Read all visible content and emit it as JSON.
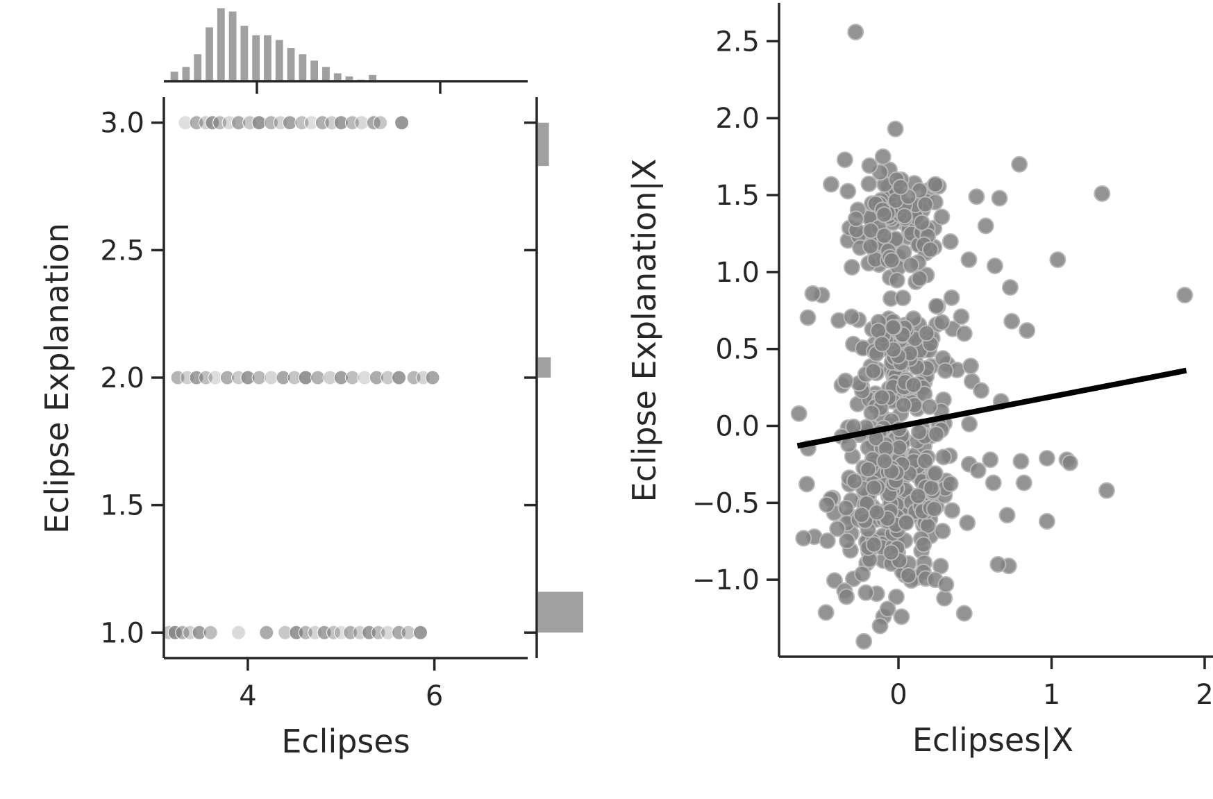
{
  "chart_data": [
    {
      "type": "scatter",
      "subtype": "joint-plot",
      "title": "",
      "xlabel": "Eclipses",
      "ylabel": "Eclipse Explanation",
      "xlim": [
        3.1,
        7.0
      ],
      "ylim": [
        0.9,
        3.1
      ],
      "xticks": [
        4,
        6
      ],
      "xtick_labels": [
        "4",
        "6"
      ],
      "yticks": [
        1.0,
        1.5,
        2.0,
        2.5,
        3.0
      ],
      "ytick_labels": [
        "1.0",
        "1.5",
        "2.0",
        "2.5",
        "3.0"
      ],
      "point_color": "#808080",
      "grid": false,
      "points": [
        {
          "x": 3.33,
          "y": 3.0
        },
        {
          "x": 3.45,
          "y": 3.0
        },
        {
          "x": 3.55,
          "y": 3.0
        },
        {
          "x": 3.62,
          "y": 3.0
        },
        {
          "x": 3.7,
          "y": 3.0
        },
        {
          "x": 3.8,
          "y": 3.0
        },
        {
          "x": 3.9,
          "y": 3.0
        },
        {
          "x": 4.02,
          "y": 3.0
        },
        {
          "x": 4.12,
          "y": 3.0
        },
        {
          "x": 4.25,
          "y": 3.0
        },
        {
          "x": 4.35,
          "y": 3.0
        },
        {
          "x": 4.45,
          "y": 3.0
        },
        {
          "x": 4.58,
          "y": 3.0
        },
        {
          "x": 4.68,
          "y": 3.0
        },
        {
          "x": 4.8,
          "y": 3.0
        },
        {
          "x": 4.9,
          "y": 3.0
        },
        {
          "x": 5.0,
          "y": 3.0
        },
        {
          "x": 5.12,
          "y": 3.0
        },
        {
          "x": 5.22,
          "y": 3.0
        },
        {
          "x": 5.35,
          "y": 3.0
        },
        {
          "x": 5.42,
          "y": 3.0
        },
        {
          "x": 5.65,
          "y": 3.0
        },
        {
          "x": 3.25,
          "y": 2.0
        },
        {
          "x": 3.35,
          "y": 2.0
        },
        {
          "x": 3.45,
          "y": 2.0
        },
        {
          "x": 3.55,
          "y": 2.0
        },
        {
          "x": 3.65,
          "y": 2.0
        },
        {
          "x": 3.78,
          "y": 2.0
        },
        {
          "x": 3.9,
          "y": 2.0
        },
        {
          "x": 4.0,
          "y": 2.0
        },
        {
          "x": 4.12,
          "y": 2.0
        },
        {
          "x": 4.25,
          "y": 2.0
        },
        {
          "x": 4.38,
          "y": 2.0
        },
        {
          "x": 4.5,
          "y": 2.0
        },
        {
          "x": 4.62,
          "y": 2.0
        },
        {
          "x": 4.75,
          "y": 2.0
        },
        {
          "x": 4.88,
          "y": 2.0
        },
        {
          "x": 5.0,
          "y": 2.0
        },
        {
          "x": 5.12,
          "y": 2.0
        },
        {
          "x": 5.25,
          "y": 2.0
        },
        {
          "x": 5.38,
          "y": 2.0
        },
        {
          "x": 5.5,
          "y": 2.0
        },
        {
          "x": 5.62,
          "y": 2.0
        },
        {
          "x": 5.78,
          "y": 2.0
        },
        {
          "x": 5.88,
          "y": 2.0
        },
        {
          "x": 5.98,
          "y": 2.0
        },
        {
          "x": 3.15,
          "y": 1.0
        },
        {
          "x": 3.22,
          "y": 1.0
        },
        {
          "x": 3.3,
          "y": 1.0
        },
        {
          "x": 3.38,
          "y": 1.0
        },
        {
          "x": 3.48,
          "y": 1.0
        },
        {
          "x": 3.6,
          "y": 1.0
        },
        {
          "x": 3.9,
          "y": 1.0
        },
        {
          "x": 4.2,
          "y": 1.0
        },
        {
          "x": 4.4,
          "y": 1.0
        },
        {
          "x": 4.52,
          "y": 1.0
        },
        {
          "x": 4.62,
          "y": 1.0
        },
        {
          "x": 4.72,
          "y": 1.0
        },
        {
          "x": 4.82,
          "y": 1.0
        },
        {
          "x": 4.92,
          "y": 1.0
        },
        {
          "x": 5.0,
          "y": 1.0
        },
        {
          "x": 5.1,
          "y": 1.0
        },
        {
          "x": 5.2,
          "y": 1.0
        },
        {
          "x": 5.3,
          "y": 1.0
        },
        {
          "x": 5.4,
          "y": 1.0
        },
        {
          "x": 5.5,
          "y": 1.0
        },
        {
          "x": 5.62,
          "y": 1.0
        },
        {
          "x": 5.72,
          "y": 1.0
        },
        {
          "x": 5.85,
          "y": 1.0
        }
      ],
      "marginal_x": {
        "type": "histogram",
        "bin_start": 3.15,
        "bin_width": 0.125,
        "counts": [
          12,
          18,
          34,
          68,
          92,
          88,
          70,
          58,
          58,
          52,
          42,
          34,
          26,
          18,
          10,
          6,
          2,
          8
        ]
      },
      "marginal_y": {
        "type": "histogram",
        "bars": [
          {
            "y_from": 1.0,
            "y_to": 1.16,
            "count": 100
          },
          {
            "y_from": 2.0,
            "y_to": 2.08,
            "count": 28
          },
          {
            "y_from": 2.83,
            "y_to": 3.0,
            "count": 24
          }
        ]
      }
    },
    {
      "type": "scatter",
      "subtype": "partial-regression",
      "title": "",
      "xlabel": "Eclipses|X",
      "ylabel": "Eclipse Explanation|X",
      "xlim": [
        -0.78,
        2.0
      ],
      "ylim": [
        -1.5,
        2.75
      ],
      "xticks": [
        0,
        1,
        2
      ],
      "xtick_labels": [
        "0",
        "1",
        "2"
      ],
      "yticks": [
        -1.0,
        -0.5,
        0.0,
        0.5,
        1.0,
        1.5,
        2.0,
        2.5
      ],
      "ytick_labels": [
        "−1.0",
        "−0.5",
        "0.0",
        "0.5",
        "1.0",
        "1.5",
        "2.0",
        "2.5"
      ],
      "point_color": "#808080",
      "line_color": "#000000",
      "grid": false,
      "regression_line": {
        "x": [
          -0.66,
          1.88
        ],
        "y": [
          -0.13,
          0.36
        ]
      },
      "clusters": [
        {
          "cx": 0.0,
          "cy": 1.3,
          "sx": 0.16,
          "sy": 0.18,
          "n": 110
        },
        {
          "cx": 0.0,
          "cy": 0.45,
          "sx": 0.17,
          "sy": 0.22,
          "n": 130
        },
        {
          "cx": -0.02,
          "cy": -0.45,
          "sx": 0.2,
          "sy": 0.3,
          "n": 260
        }
      ],
      "outliers": [
        {
          "x": -0.28,
          "y": 2.56
        },
        {
          "x": -0.02,
          "y": 1.93
        },
        {
          "x": 0.79,
          "y": 1.7
        },
        {
          "x": 1.33,
          "y": 1.51
        },
        {
          "x": 1.87,
          "y": 0.85
        },
        {
          "x": -0.35,
          "y": 1.73
        },
        {
          "x": -0.44,
          "y": 1.57
        },
        {
          "x": 1.04,
          "y": 1.08
        },
        {
          "x": 0.73,
          "y": 0.9
        },
        {
          "x": 0.74,
          "y": 0.68
        },
        {
          "x": 0.84,
          "y": 0.62
        },
        {
          "x": 0.57,
          "y": 1.3
        },
        {
          "x": 0.46,
          "y": 1.08
        },
        {
          "x": 0.63,
          "y": 1.04
        },
        {
          "x": -0.65,
          "y": 0.08
        },
        {
          "x": -0.62,
          "y": -0.73
        },
        {
          "x": -0.5,
          "y": 0.85
        },
        {
          "x": -0.56,
          "y": 0.86
        },
        {
          "x": 0.6,
          "y": -0.22
        },
        {
          "x": 0.8,
          "y": -0.23
        },
        {
          "x": 0.97,
          "y": -0.21
        },
        {
          "x": 1.1,
          "y": -0.22
        },
        {
          "x": 1.12,
          "y": -0.24
        },
        {
          "x": 1.36,
          "y": -0.42
        },
        {
          "x": 0.82,
          "y": -0.37
        },
        {
          "x": 0.62,
          "y": -0.37
        },
        {
          "x": 0.71,
          "y": -0.58
        },
        {
          "x": 0.97,
          "y": -0.62
        },
        {
          "x": 0.72,
          "y": -0.91
        },
        {
          "x": 0.65,
          "y": -0.9
        },
        {
          "x": -0.12,
          "y": -1.3
        },
        {
          "x": 0.02,
          "y": -1.24
        },
        {
          "x": -0.07,
          "y": -1.19
        },
        {
          "x": -0.34,
          "y": -1.11
        },
        {
          "x": 0.24,
          "y": -1.0
        },
        {
          "x": 0.3,
          "y": -1.12
        },
        {
          "x": 0.31,
          "y": -1.03
        },
        {
          "x": 0.51,
          "y": 1.49
        },
        {
          "x": 0.66,
          "y": 1.48
        },
        {
          "x": 0.43,
          "y": 0.6
        },
        {
          "x": 0.48,
          "y": 0.29
        },
        {
          "x": 0.54,
          "y": 0.23
        },
        {
          "x": 0.67,
          "y": 0.16
        },
        {
          "x": 0.41,
          "y": 0.71
        },
        {
          "x": 0.52,
          "y": -0.29
        },
        {
          "x": 0.45,
          "y": -0.63
        }
      ]
    }
  ]
}
